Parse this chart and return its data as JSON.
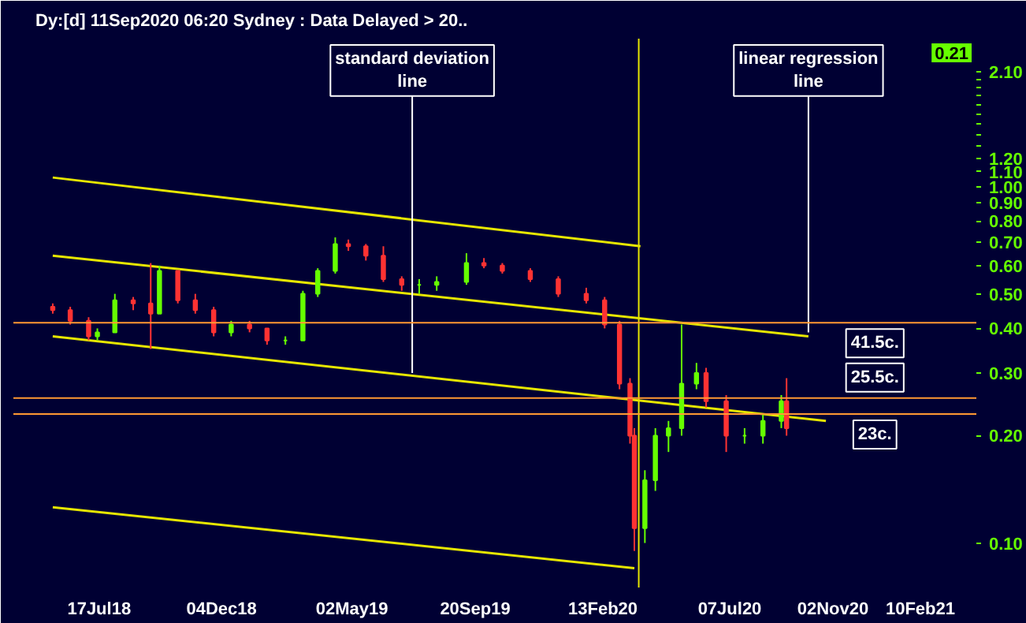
{
  "chart_data": {
    "type": "candlestick",
    "title": "Dy:[d]  11Sep2020 06:20 Sydney : Data Delayed > 20..",
    "x": [
      "2018-05-25",
      "2018-06-14",
      "2018-07-05",
      "2018-07-15",
      "2018-08-04",
      "2018-08-25",
      "2018-09-14",
      "2018-09-24",
      "2018-10-15",
      "2018-11-04",
      "2018-11-25",
      "2018-12-15",
      "2019-01-05",
      "2019-01-25",
      "2019-02-15",
      "2019-03-07",
      "2019-03-24",
      "2019-04-13",
      "2019-04-28",
      "2019-05-18",
      "2019-06-07",
      "2019-06-28",
      "2019-07-18",
      "2019-08-07",
      "2019-09-10",
      "2019-09-30",
      "2019-10-21",
      "2019-11-22",
      "2019-12-24",
      "2020-01-25",
      "2020-02-15",
      "2020-03-03",
      "2020-03-15",
      "2020-03-20",
      "2020-04-01",
      "2020-04-13",
      "2020-04-28",
      "2020-05-13",
      "2020-05-30",
      "2020-06-10",
      "2020-07-03",
      "2020-07-24",
      "2020-08-14",
      "2020-09-04",
      "2020-09-10"
    ],
    "ohlc": [
      [
        0.46,
        0.47,
        0.44,
        0.45
      ],
      [
        0.45,
        0.46,
        0.41,
        0.42
      ],
      [
        0.42,
        0.43,
        0.37,
        0.38
      ],
      [
        0.38,
        0.4,
        0.37,
        0.39
      ],
      [
        0.39,
        0.5,
        0.39,
        0.48
      ],
      [
        0.48,
        0.49,
        0.45,
        0.47
      ],
      [
        0.47,
        0.61,
        0.35,
        0.44
      ],
      [
        0.44,
        0.6,
        0.44,
        0.58
      ],
      [
        0.58,
        0.58,
        0.47,
        0.48
      ],
      [
        0.48,
        0.5,
        0.44,
        0.45
      ],
      [
        0.45,
        0.46,
        0.38,
        0.39
      ],
      [
        0.39,
        0.42,
        0.38,
        0.41
      ],
      [
        0.41,
        0.42,
        0.39,
        0.4
      ],
      [
        0.4,
        0.4,
        0.36,
        0.37
      ],
      [
        0.37,
        0.38,
        0.36,
        0.37
      ],
      [
        0.37,
        0.51,
        0.37,
        0.5
      ],
      [
        0.5,
        0.59,
        0.49,
        0.58
      ],
      [
        0.58,
        0.72,
        0.57,
        0.69
      ],
      [
        0.69,
        0.71,
        0.66,
        0.68
      ],
      [
        0.68,
        0.69,
        0.62,
        0.64
      ],
      [
        0.64,
        0.68,
        0.54,
        0.55
      ],
      [
        0.55,
        0.56,
        0.51,
        0.53
      ],
      [
        0.53,
        0.55,
        0.5,
        0.53
      ],
      [
        0.53,
        0.56,
        0.51,
        0.54
      ],
      [
        0.54,
        0.65,
        0.53,
        0.61
      ],
      [
        0.61,
        0.63,
        0.59,
        0.6
      ],
      [
        0.6,
        0.61,
        0.57,
        0.58
      ],
      [
        0.58,
        0.59,
        0.54,
        0.55
      ],
      [
        0.55,
        0.56,
        0.49,
        0.5
      ],
      [
        0.5,
        0.52,
        0.47,
        0.48
      ],
      [
        0.48,
        0.49,
        0.4,
        0.41
      ],
      [
        0.41,
        0.42,
        0.27,
        0.28
      ],
      [
        0.28,
        0.29,
        0.19,
        0.2
      ],
      [
        0.2,
        0.21,
        0.095,
        0.11
      ],
      [
        0.11,
        0.16,
        0.1,
        0.15
      ],
      [
        0.15,
        0.21,
        0.14,
        0.2
      ],
      [
        0.2,
        0.22,
        0.18,
        0.21
      ],
      [
        0.21,
        0.41,
        0.2,
        0.28
      ],
      [
        0.28,
        0.32,
        0.27,
        0.3
      ],
      [
        0.3,
        0.31,
        0.24,
        0.25
      ],
      [
        0.25,
        0.26,
        0.18,
        0.2
      ],
      [
        0.2,
        0.21,
        0.19,
        0.2
      ],
      [
        0.2,
        0.23,
        0.19,
        0.22
      ],
      [
        0.22,
        0.26,
        0.21,
        0.25
      ],
      [
        0.25,
        0.29,
        0.2,
        0.21
      ]
    ],
    "series": [
      {
        "type": "line",
        "color": "#e6e600",
        "x": [
          "2018-05-25",
          "2020-03-27"
        ],
        "values": [
          1.06,
          0.68
        ]
      },
      {
        "type": "line",
        "color": "#e6e600",
        "x": [
          "2018-05-25",
          "2020-10-05"
        ],
        "values": [
          0.64,
          0.38
        ]
      },
      {
        "type": "line",
        "color": "#e6e600",
        "x": [
          "2018-05-25",
          "2020-10-25"
        ],
        "values": [
          0.38,
          0.22
        ]
      },
      {
        "type": "line",
        "color": "#e6e600",
        "x": [
          "2018-05-25",
          "2020-03-20"
        ],
        "values": [
          0.126,
          0.085
        ]
      }
    ],
    "log": "y",
    "xlim": [
      "2018-04-10",
      "2021-04-15"
    ],
    "xticks": [
      {
        "value": "2018-07-17",
        "label": "17Jul18"
      },
      {
        "value": "2018-12-04",
        "label": "04Dec18"
      },
      {
        "value": "2019-05-02",
        "label": "02May19"
      },
      {
        "value": "2019-09-20",
        "label": "20Sep19"
      },
      {
        "value": "2020-02-13",
        "label": "13Feb20"
      },
      {
        "value": "2020-07-07",
        "label": "07Jul20"
      },
      {
        "value": "2020-11-02",
        "label": "02Nov20"
      },
      {
        "value": "2021-02-10",
        "label": "10Feb21"
      }
    ],
    "ylim": [
      0.075,
      2.6
    ],
    "yticks": [
      {
        "value": 0.1,
        "label": "0.10"
      },
      {
        "value": 0.2,
        "label": "0.20"
      },
      {
        "value": 0.3,
        "label": "0.30"
      },
      {
        "value": 0.4,
        "label": "0.40"
      },
      {
        "value": 0.5,
        "label": "0.50"
      },
      {
        "value": 0.6,
        "label": "0.60"
      },
      {
        "value": 0.7,
        "label": "0.70"
      },
      {
        "value": 0.8,
        "label": "0.80"
      },
      {
        "value": 0.9,
        "label": "0.90"
      },
      {
        "value": 1.0,
        "label": "1.00"
      },
      {
        "value": 1.1,
        "label": "1.10"
      },
      {
        "value": 1.2,
        "label": "1.20"
      },
      {
        "value": 1.3,
        "label": null
      },
      {
        "value": 1.4,
        "label": null
      },
      {
        "value": 1.5,
        "label": null
      },
      {
        "value": 1.6,
        "label": null
      },
      {
        "value": 1.7,
        "label": null
      },
      {
        "value": 1.8,
        "label": null
      },
      {
        "value": 1.9,
        "label": null
      },
      {
        "value": 2.0,
        "label": null
      },
      {
        "value": 2.1,
        "label": "2.10"
      }
    ],
    "ref_lines": [
      {
        "axis": "x",
        "value": "2020-03-25",
        "color": "#e6e600"
      },
      {
        "axis": "y",
        "value": 0.415,
        "label": "41.5c.",
        "color": "#ff9933"
      },
      {
        "axis": "y",
        "value": 0.255,
        "label": "25.5c.",
        "color": "#ff9933"
      },
      {
        "axis": "y",
        "value": 0.23,
        "label": "23c.",
        "color": "#ff9933"
      }
    ],
    "annotations": [
      {
        "text": "standard deviation\nline",
        "x": "2019-07-10",
        "y": 0.3
      },
      {
        "text": "linear regression\nline",
        "x": "2020-10-05",
        "y": 0.39
      },
      "0.21"
    ]
  }
}
